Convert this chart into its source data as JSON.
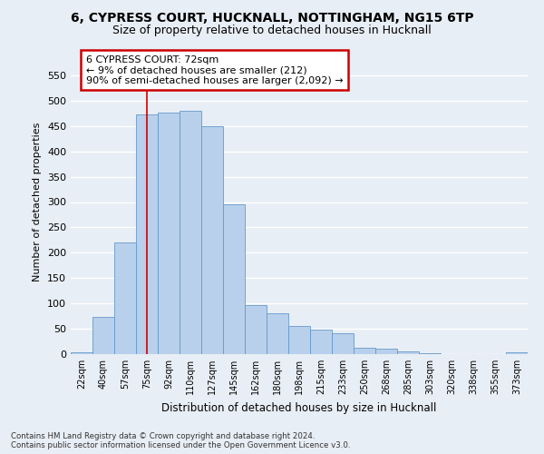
{
  "title1": "6, CYPRESS COURT, HUCKNALL, NOTTINGHAM, NG15 6TP",
  "title2": "Size of property relative to detached houses in Hucknall",
  "xlabel": "Distribution of detached houses by size in Hucknall",
  "ylabel": "Number of detached properties",
  "categories": [
    "22sqm",
    "40sqm",
    "57sqm",
    "75sqm",
    "92sqm",
    "110sqm",
    "127sqm",
    "145sqm",
    "162sqm",
    "180sqm",
    "198sqm",
    "215sqm",
    "233sqm",
    "250sqm",
    "268sqm",
    "285sqm",
    "303sqm",
    "320sqm",
    "338sqm",
    "355sqm",
    "373sqm"
  ],
  "values": [
    4,
    73,
    220,
    473,
    477,
    480,
    450,
    295,
    96,
    81,
    55,
    48,
    41,
    12,
    11,
    5,
    1,
    0,
    0,
    0,
    4
  ],
  "bar_color": "#b8d0eb",
  "bar_edgecolor": "#6699cc",
  "vline_x_index": 3,
  "vline_color": "#cc0000",
  "annotation_text": "6 CYPRESS COURT: 72sqm\n← 9% of detached houses are smaller (212)\n90% of semi-detached houses are larger (2,092) →",
  "annotation_box_color": "white",
  "annotation_box_edgecolor": "#cc0000",
  "ylim": [
    0,
    600
  ],
  "yticks": [
    0,
    50,
    100,
    150,
    200,
    250,
    300,
    350,
    400,
    450,
    500,
    550
  ],
  "footer": "Contains HM Land Registry data © Crown copyright and database right 2024.\nContains public sector information licensed under the Open Government Licence v3.0.",
  "bg_color": "#e8eef5",
  "grid_color": "#ffffff"
}
